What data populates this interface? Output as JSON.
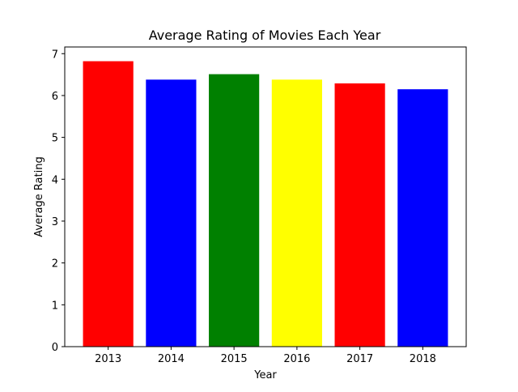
{
  "chart_data": {
    "type": "bar",
    "title": "Average Rating of Movies Each Year",
    "xlabel": "Year",
    "ylabel": "Average Rating",
    "categories": [
      "2013",
      "2014",
      "2015",
      "2016",
      "2017",
      "2018"
    ],
    "values": [
      6.82,
      6.38,
      6.51,
      6.38,
      6.29,
      6.15
    ],
    "colors": [
      "#ff0000",
      "#0000ff",
      "#008000",
      "#ffff00",
      "#ff0000",
      "#0000ff"
    ],
    "ylim": [
      0,
      7.16
    ],
    "yticks": [
      "0",
      "1",
      "2",
      "3",
      "4",
      "5",
      "6",
      "7"
    ],
    "grid": false,
    "legend": "none"
  }
}
